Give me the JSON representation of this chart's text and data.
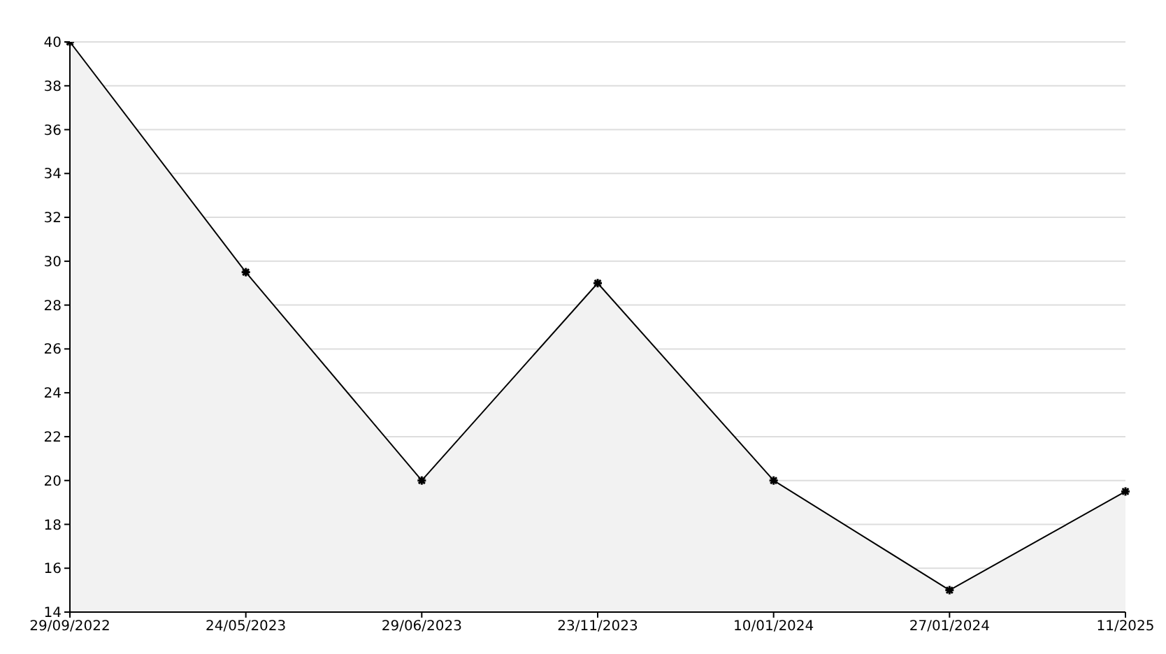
{
  "chart_data": {
    "type": "area",
    "categories": [
      "29/09/2022",
      "24/05/2023",
      "29/06/2023",
      "23/11/2023",
      "10/01/2024",
      "27/01/2024",
      "11/2025"
    ],
    "series": [
      {
        "color": "#000000",
        "values": [
          40,
          29.5,
          20,
          29,
          20,
          15,
          19.5
        ]
      }
    ],
    "ylim": [
      14,
      40
    ],
    "yticks": [
      14,
      16,
      18,
      20,
      22,
      24,
      26,
      28,
      30,
      32,
      34,
      36,
      38,
      40
    ],
    "grid": "y",
    "marker": "cross",
    "line_style": "solid"
  }
}
